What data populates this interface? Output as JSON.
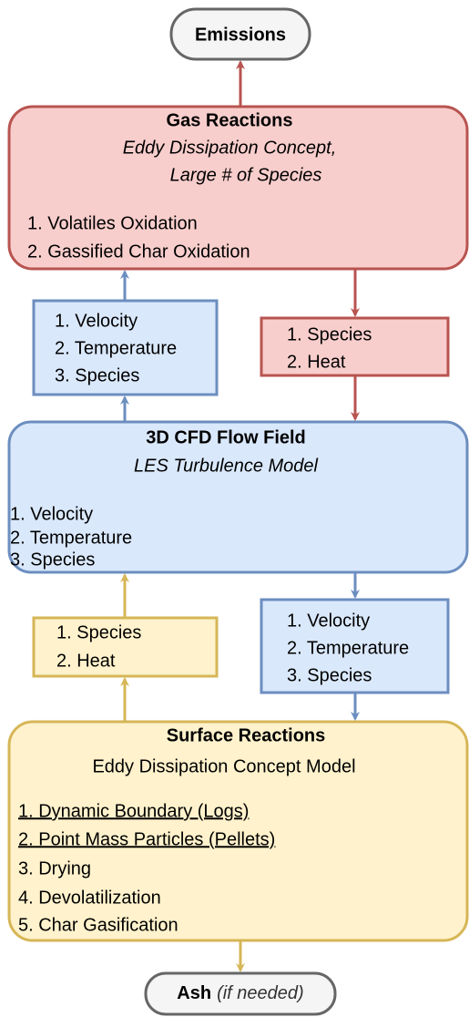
{
  "emissions": {
    "label": "Emissions"
  },
  "gas_reactions": {
    "title": "Gas Reactions",
    "subtitle": [
      "Eddy Dissipation Concept,",
      "Large # of Species"
    ],
    "items": [
      "1. Volatiles Oxidation",
      "2. Gassified Char Oxidation"
    ]
  },
  "flow_to_gas": {
    "items": [
      "1. Velocity",
      "2. Temperature",
      "3. Species"
    ]
  },
  "gas_to_flow": {
    "items": [
      "1. Species",
      "2. Heat"
    ]
  },
  "cfd_flow_field": {
    "title": "3D CFD Flow Field",
    "subtitle": "LES Turbulence Model",
    "items": [
      "1. Velocity",
      "2. Temperature",
      "3. Species"
    ]
  },
  "flow_to_surface": {
    "items": [
      "1. Velocity",
      "2. Temperature",
      "3. Species"
    ]
  },
  "surface_to_flow": {
    "items": [
      "1. Species",
      "2. Heat"
    ]
  },
  "surface_reactions": {
    "title": "Surface Reactions",
    "subtitle": "Eddy Dissipation Concept Model",
    "items": [
      "1. Dynamic Boundary (Logs)",
      "2. Point Mass Particles (Pellets)",
      "3. Drying",
      "4. Devolatilization",
      "5. Char Gasification"
    ]
  },
  "ash": {
    "label": "Ash",
    "note": "(if needed)"
  }
}
